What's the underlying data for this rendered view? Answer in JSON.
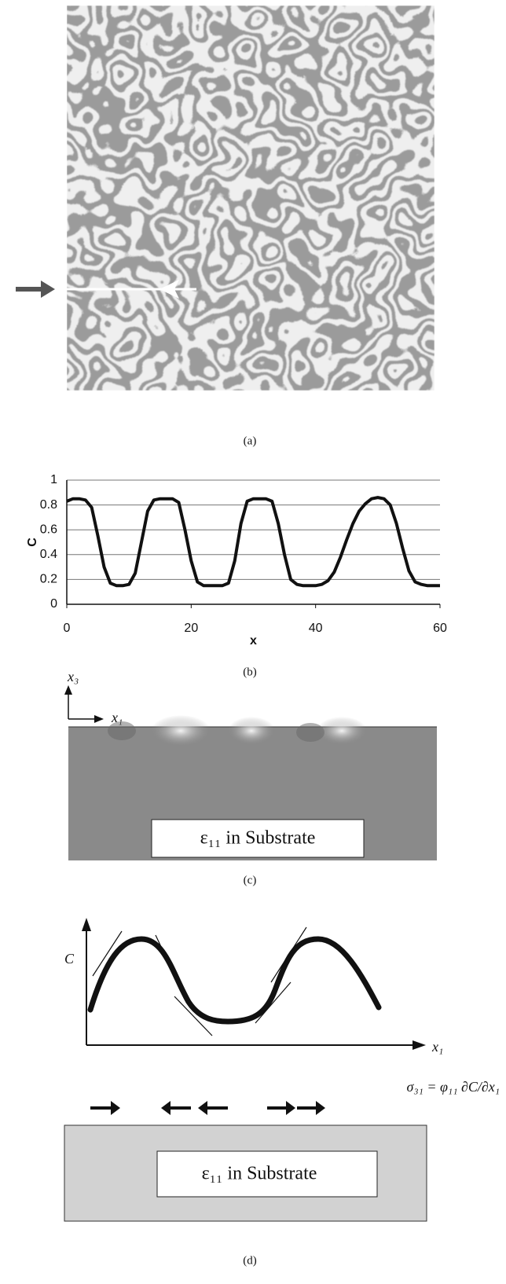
{
  "panels": {
    "a": {
      "caption": "(a)"
    },
    "b": {
      "caption": "(b)"
    },
    "c": {
      "caption": "(c)",
      "axis_vertical": "x₃",
      "axis_horizontal": "x₁",
      "box_label": "ε₁₁  in Substrate"
    },
    "d": {
      "caption": "(d)",
      "axis_vertical": "C",
      "axis_horizontal": "x₁",
      "equation": "σ₃₁ = φ₁₁ ∂C/∂x₁",
      "box_label": "ε₁₁  in Substrate"
    }
  },
  "chart_data": {
    "type": "line",
    "x_label": "x",
    "y_label": "C",
    "color": "#111111",
    "grid": true,
    "x": [
      0,
      1,
      2,
      3,
      4,
      5,
      6,
      7,
      8,
      9,
      10,
      11,
      12,
      13,
      14,
      15,
      16,
      17,
      18,
      19,
      20,
      21,
      22,
      23,
      24,
      25,
      26,
      27,
      28,
      29,
      30,
      31,
      32,
      33,
      34,
      35,
      36,
      37,
      38,
      39,
      40,
      41,
      42,
      43,
      44,
      45,
      46,
      47,
      48,
      49,
      50,
      51,
      52,
      53,
      54,
      55,
      56,
      57,
      58,
      59,
      60
    ],
    "values": [
      0.83,
      0.85,
      0.85,
      0.84,
      0.78,
      0.55,
      0.3,
      0.17,
      0.15,
      0.15,
      0.16,
      0.25,
      0.5,
      0.75,
      0.84,
      0.85,
      0.85,
      0.85,
      0.82,
      0.6,
      0.35,
      0.18,
      0.15,
      0.15,
      0.15,
      0.15,
      0.17,
      0.35,
      0.65,
      0.83,
      0.85,
      0.85,
      0.85,
      0.83,
      0.65,
      0.4,
      0.2,
      0.16,
      0.15,
      0.15,
      0.15,
      0.16,
      0.19,
      0.26,
      0.38,
      0.52,
      0.65,
      0.75,
      0.81,
      0.85,
      0.86,
      0.85,
      0.8,
      0.65,
      0.45,
      0.27,
      0.18,
      0.16,
      0.15,
      0.15,
      0.15
    ],
    "xlim": [
      0,
      60
    ],
    "xticks": [
      0,
      20,
      40,
      60
    ],
    "ylim": [
      0,
      1
    ],
    "yticks": [
      0,
      0.2,
      0.4,
      0.6,
      0.8,
      1
    ]
  }
}
